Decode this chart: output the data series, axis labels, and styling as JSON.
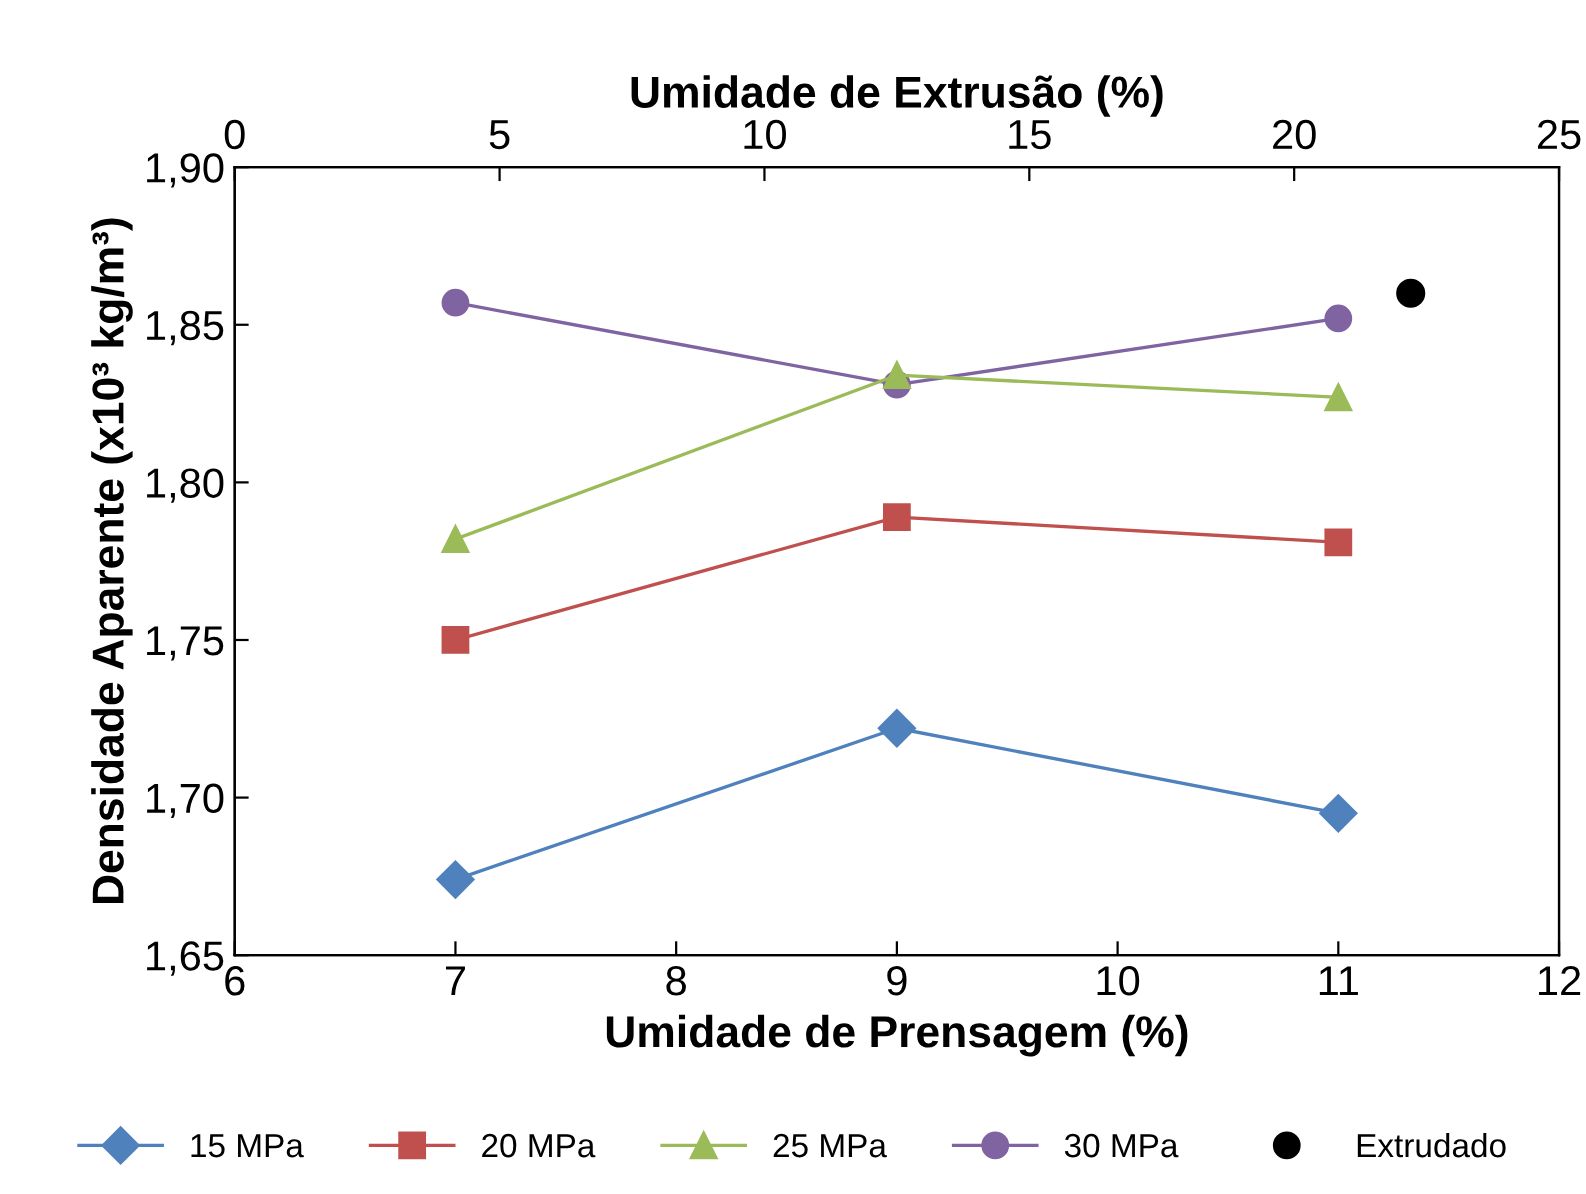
{
  "chart_data": {
    "type": "line",
    "xlabel": "Umidade de Prensagem (%)",
    "x2label": "Umidade de Extrusão (%)",
    "ylabel": "Densidade Aparente (x10³ kg/m³)",
    "xlim": [
      6,
      12
    ],
    "xticks": [
      6,
      7,
      8,
      9,
      10,
      11,
      12
    ],
    "x2lim": [
      0,
      25
    ],
    "x2ticks": [
      0,
      5,
      10,
      15,
      20,
      25
    ],
    "ylim": [
      1.65,
      1.9
    ],
    "yticks": [
      {
        "value": 1.65,
        "label": "1,65"
      },
      {
        "value": 1.7,
        "label": "1,70"
      },
      {
        "value": 1.75,
        "label": "1,75"
      },
      {
        "value": 1.8,
        "label": "1,80"
      },
      {
        "value": 1.85,
        "label": "1,85"
      },
      {
        "value": 1.9,
        "label": "1,90"
      }
    ],
    "grid": false,
    "legend": "bottom",
    "series": [
      {
        "name": "15 MPa",
        "color": "#4f81bd",
        "marker": "diamond",
        "x": [
          7,
          9,
          11
        ],
        "values": [
          1.674,
          1.722,
          1.695
        ]
      },
      {
        "name": "20 MPa",
        "color": "#c0504d",
        "marker": "square",
        "x": [
          7,
          9,
          11
        ],
        "values": [
          1.75,
          1.789,
          1.781
        ]
      },
      {
        "name": "25 MPa",
        "color": "#9bbb59",
        "marker": "triangle",
        "x": [
          7,
          9,
          11
        ],
        "values": [
          1.782,
          1.834,
          1.827
        ]
      },
      {
        "name": "30 MPa",
        "color": "#8064a2",
        "marker": "circle",
        "x": [
          7,
          9,
          11
        ],
        "values": [
          1.857,
          1.831,
          1.852
        ]
      },
      {
        "name": "Extrudado",
        "color": "#000000",
        "marker": "circle",
        "type": "scatter",
        "axis": "x2",
        "x": [
          22.2
        ],
        "values": [
          1.86
        ]
      }
    ]
  }
}
